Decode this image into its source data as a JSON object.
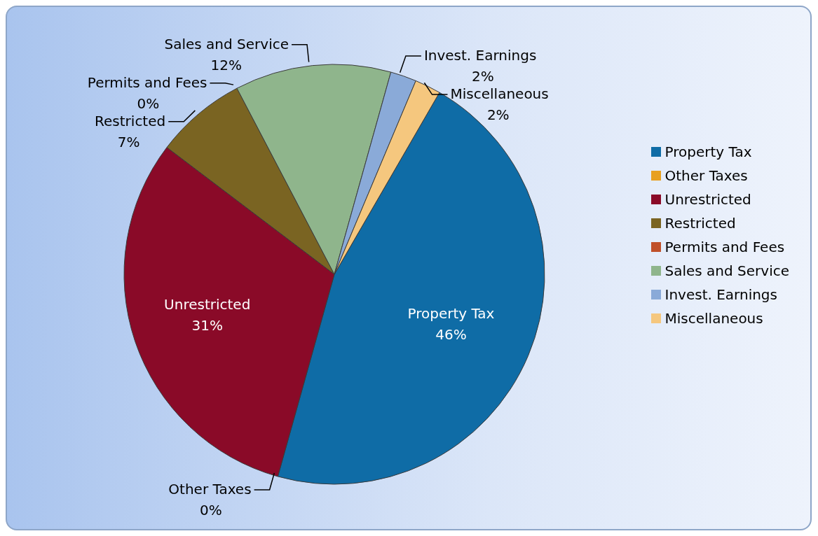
{
  "chart_data": {
    "type": "pie",
    "categories": [
      "Property Tax",
      "Other Taxes",
      "Unrestricted",
      "Restricted",
      "Permits and Fees",
      "Sales and Service",
      "Invest. Earnings",
      "Miscellaneous"
    ],
    "values": [
      46,
      0,
      31,
      7,
      0,
      12,
      2,
      2
    ],
    "value_labels": [
      "46%",
      "0%",
      "31%",
      "7%",
      "0%",
      "12%",
      "2%",
      "2%"
    ],
    "colors": [
      "#0f6ca6",
      "#e8a020",
      "#8a0a28",
      "#7a6422",
      "#c0502a",
      "#8fb58c",
      "#8aaad8",
      "#f5c77e"
    ],
    "legend": "right"
  }
}
